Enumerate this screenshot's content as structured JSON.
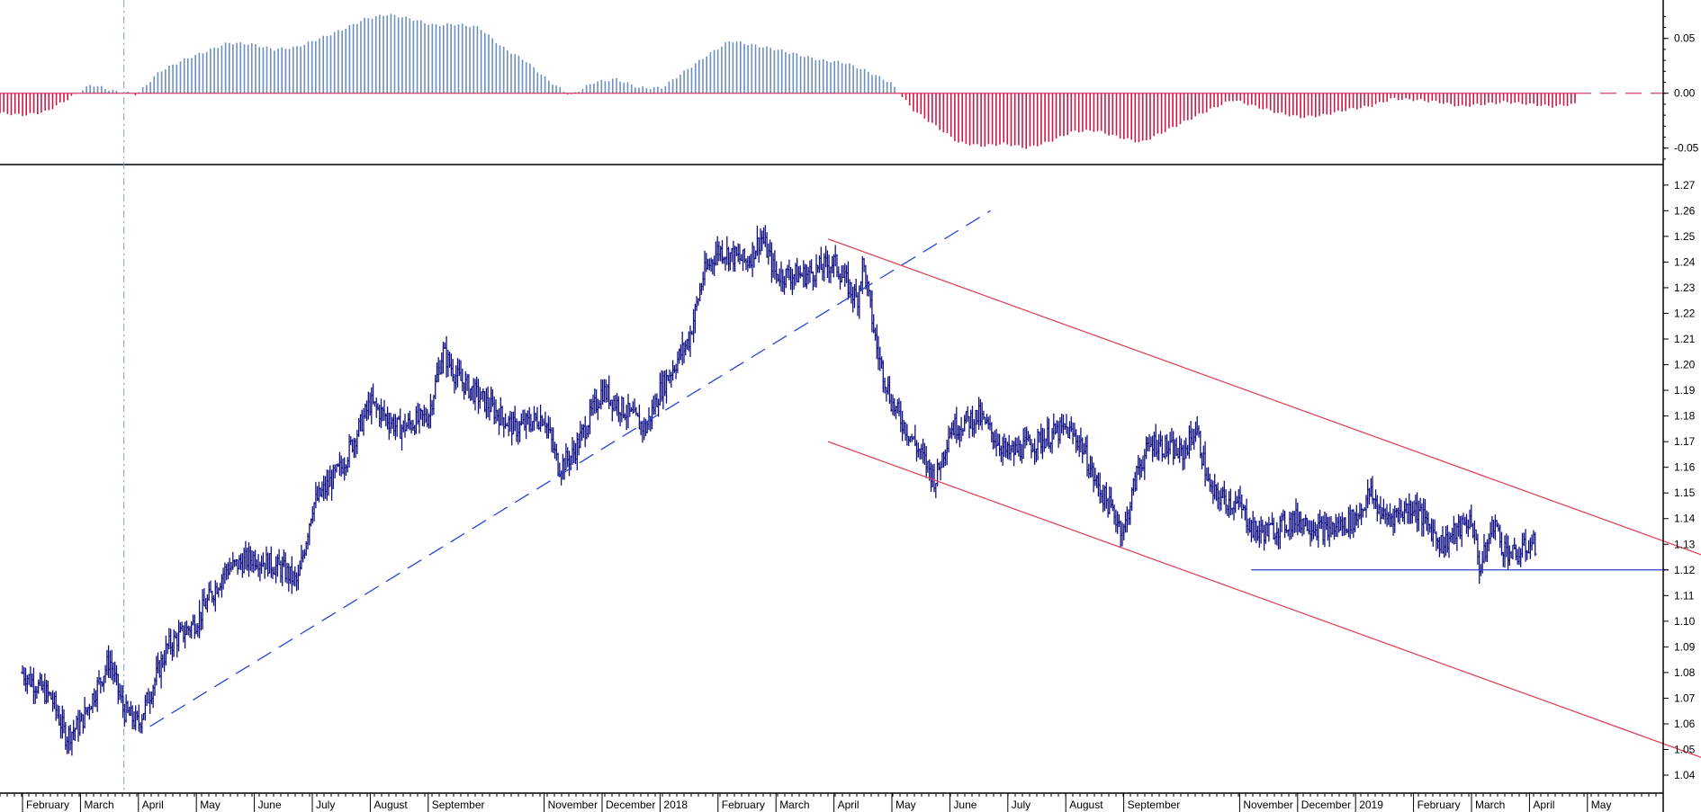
{
  "chart_data": [
    {
      "type": "histogram_oscillator",
      "panel": "top",
      "ylim": [
        -0.065,
        0.085
      ],
      "y_ticks": [
        "0.05",
        "0.00",
        "-0.05"
      ],
      "y_tick_values": [
        0.05,
        0.0,
        -0.05
      ],
      "zero_line": "dashed",
      "colors": {
        "positive": "#6d8fc0",
        "negative": "#cc1747"
      },
      "series": [
        {
          "name": "",
          "values": [
            -0.018,
            -0.02,
            -0.017,
            -0.005,
            0.008,
            0.002,
            -0.001,
            0.02,
            0.03,
            0.038,
            0.046,
            0.045,
            0.04,
            0.042,
            0.05,
            0.058,
            0.068,
            0.072,
            0.068,
            0.062,
            0.063,
            0.06,
            0.042,
            0.03,
            0.012,
            -0.002,
            0.01,
            0.013,
            0.005,
            0.005,
            0.02,
            0.035,
            0.048,
            0.044,
            0.04,
            0.035,
            0.03,
            0.028,
            0.02,
            0.01,
            -0.015,
            -0.03,
            -0.045,
            -0.048,
            -0.046,
            -0.05,
            -0.044,
            -0.035,
            -0.034,
            -0.04,
            -0.045,
            -0.035,
            -0.025,
            -0.015,
            -0.006,
            -0.012,
            -0.018,
            -0.022,
            -0.02,
            -0.015,
            -0.012,
            -0.005,
            -0.006,
            -0.008,
            -0.012,
            -0.01,
            -0.008,
            -0.01,
            -0.012,
            -0.01
          ]
        }
      ]
    },
    {
      "type": "ohlc",
      "panel": "main",
      "ylim": [
        1.033,
        1.278
      ],
      "y_ticks": [
        "1.27",
        "1.26",
        "1.25",
        "1.24",
        "1.23",
        "1.22",
        "1.21",
        "1.20",
        "1.19",
        "1.18",
        "1.17",
        "1.16",
        "1.15",
        "1.14",
        "1.13",
        "1.12",
        "1.11",
        "1.10",
        "1.09",
        "1.08",
        "1.07",
        "1.06",
        "1.05",
        "1.04"
      ],
      "y_tick_values": [
        1.27,
        1.26,
        1.25,
        1.24,
        1.23,
        1.22,
        1.21,
        1.2,
        1.19,
        1.18,
        1.17,
        1.16,
        1.15,
        1.14,
        1.13,
        1.12,
        1.11,
        1.1,
        1.09,
        1.08,
        1.07,
        1.06,
        1.05,
        1.04
      ],
      "x_month_labels": [
        "February",
        "March",
        "April",
        "May",
        "June",
        "July",
        "August",
        "September",
        "November",
        "December",
        "2018",
        "February",
        "March",
        "April",
        "May",
        "June",
        "July",
        "August",
        "September",
        "November",
        "December",
        "2019",
        "February",
        "March",
        "April",
        "May"
      ],
      "x_month_index": [
        0,
        2,
        4,
        6,
        8,
        10,
        12,
        14,
        18,
        20,
        22,
        24,
        26,
        28,
        30,
        32,
        34,
        36,
        38,
        42,
        44,
        46,
        48,
        50,
        52,
        54
      ],
      "color": "#0f0f82",
      "close_series": [
        {
          "name": "",
          "values": [
            1.08,
            1.07,
            1.055,
            1.06,
            1.085,
            1.065,
            1.06,
            1.09,
            1.1,
            1.12,
            1.125,
            1.12,
            1.115,
            1.145,
            1.16,
            1.185,
            1.175,
            1.18,
            1.205,
            1.195,
            1.185,
            1.175,
            1.18,
            1.16,
            1.165,
            1.19,
            1.18,
            1.175,
            1.19,
            1.21,
            1.235,
            1.245,
            1.24,
            1.25,
            1.235,
            1.235,
            1.24,
            1.225,
            1.24,
            1.205,
            1.185,
            1.165,
            1.155,
            1.175,
            1.18,
            1.165,
            1.17,
            1.175,
            1.17,
            1.155,
            1.135,
            1.16,
            1.17,
            1.165,
            1.175,
            1.15,
            1.145,
            1.135,
            1.135,
            1.14,
            1.135,
            1.14,
            1.15,
            1.14,
            1.145,
            1.13,
            1.14,
            1.12,
            1.14,
            1.13,
            1.125,
            1.13,
            1.13
          ]
        }
      ],
      "close_month_index": [
        0,
        1,
        1.5,
        2,
        3,
        3.5,
        4,
        5,
        6,
        7,
        8,
        9,
        9.5,
        10,
        11,
        12,
        13,
        14,
        14.5,
        15,
        16,
        17,
        18,
        18.5,
        19,
        20,
        21,
        21.5,
        22,
        23,
        23.5,
        24,
        25,
        25.5,
        26,
        27,
        28,
        28.8,
        29,
        29.5,
        30,
        31,
        31.5,
        32,
        33,
        34,
        35,
        36,
        36.5,
        37,
        38,
        38.5,
        39,
        40,
        40.5,
        41,
        42,
        42.5,
        43,
        44,
        45,
        46,
        46.5,
        47,
        48,
        49,
        50,
        50.3,
        50.8,
        51,
        51.5,
        52,
        52.2
      ],
      "lines": [
        {
          "style": "dashed",
          "color": "#2844d6",
          "from": [
            4.4,
            1.059
          ],
          "to": [
            33.4,
            1.26
          ]
        },
        {
          "style": "solid",
          "color": "#e0445d",
          "from": [
            27.8,
            1.249
          ],
          "to": [
            58.4,
            1.124
          ]
        },
        {
          "style": "solid",
          "color": "#e0445d",
          "from": [
            27.8,
            1.17
          ],
          "to": [
            58.4,
            1.045
          ]
        },
        {
          "style": "solid",
          "color": "#2a3fd0",
          "from": [
            42.4,
            1.12
          ],
          "to": [
            56.8,
            1.12
          ]
        }
      ]
    }
  ]
}
